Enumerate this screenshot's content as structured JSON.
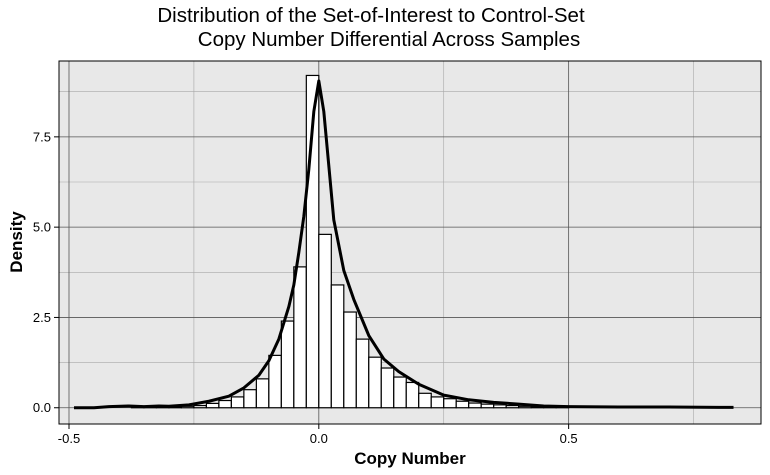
{
  "chart_data": {
    "type": "histogram",
    "title_lines": [
      "Distribution of the Set-of-Interest to Control-Set",
      "Copy Number Differential Across Samples"
    ],
    "xlabel": "Copy Number",
    "ylabel": "Density",
    "xlim": [
      -0.52,
      0.885
    ],
    "ylim": [
      -0.45,
      9.6
    ],
    "x_major_ticks": [
      -0.5,
      0.0,
      0.5
    ],
    "x_tick_labels": [
      "-0.5",
      "0.0",
      "0.5"
    ],
    "x_minor_ticks": [
      -0.25,
      0.25,
      0.75
    ],
    "y_major_ticks": [
      0,
      2.5,
      5,
      7.5
    ],
    "y_tick_labels": [
      "0.0",
      "2.5",
      "5.0",
      "7.5"
    ],
    "y_minor_ticks": [
      1.25,
      3.75,
      6.25,
      8.75
    ],
    "grid": true,
    "panel_background": "#e8e8e8",
    "bar_fill": "#ffffff",
    "line_color": "#000000",
    "bin_width": 0.025,
    "bins": [
      {
        "x0": -0.5,
        "value": 0.0
      },
      {
        "x0": -0.475,
        "value": 0.0
      },
      {
        "x0": -0.45,
        "value": 0.0
      },
      {
        "x0": -0.425,
        "value": 0.0
      },
      {
        "x0": -0.4,
        "value": 0.0
      },
      {
        "x0": -0.375,
        "value": 0.02
      },
      {
        "x0": -0.35,
        "value": 0.02
      },
      {
        "x0": -0.325,
        "value": 0.02
      },
      {
        "x0": -0.3,
        "value": 0.03
      },
      {
        "x0": -0.275,
        "value": 0.04
      },
      {
        "x0": -0.25,
        "value": 0.06
      },
      {
        "x0": -0.225,
        "value": 0.12
      },
      {
        "x0": -0.2,
        "value": 0.2
      },
      {
        "x0": -0.175,
        "value": 0.3
      },
      {
        "x0": -0.15,
        "value": 0.5
      },
      {
        "x0": -0.125,
        "value": 0.8
      },
      {
        "x0": -0.1,
        "value": 1.45
      },
      {
        "x0": -0.075,
        "value": 2.4
      },
      {
        "x0": -0.05,
        "value": 3.9
      },
      {
        "x0": -0.025,
        "value": 9.2
      },
      {
        "x0": 0.0,
        "value": 4.8
      },
      {
        "x0": 0.025,
        "value": 3.4
      },
      {
        "x0": 0.05,
        "value": 2.65
      },
      {
        "x0": 0.075,
        "value": 1.9
      },
      {
        "x0": 0.1,
        "value": 1.4
      },
      {
        "x0": 0.125,
        "value": 1.1
      },
      {
        "x0": 0.15,
        "value": 0.85
      },
      {
        "x0": 0.175,
        "value": 0.7
      },
      {
        "x0": 0.2,
        "value": 0.4
      },
      {
        "x0": 0.225,
        "value": 0.3
      },
      {
        "x0": 0.25,
        "value": 0.25
      },
      {
        "x0": 0.275,
        "value": 0.18
      },
      {
        "x0": 0.3,
        "value": 0.13
      },
      {
        "x0": 0.325,
        "value": 0.1
      },
      {
        "x0": 0.35,
        "value": 0.08
      },
      {
        "x0": 0.375,
        "value": 0.06
      },
      {
        "x0": 0.4,
        "value": 0.04
      },
      {
        "x0": 0.425,
        "value": 0.03
      },
      {
        "x0": 0.45,
        "value": 0.02
      },
      {
        "x0": 0.475,
        "value": 0.02
      }
    ],
    "density_curve": {
      "x": [
        -0.49,
        -0.45,
        -0.42,
        -0.38,
        -0.35,
        -0.32,
        -0.3,
        -0.26,
        -0.22,
        -0.18,
        -0.15,
        -0.12,
        -0.1,
        -0.08,
        -0.06,
        -0.05,
        -0.04,
        -0.03,
        -0.02,
        -0.01,
        0.0,
        0.01,
        0.02,
        0.03,
        0.05,
        0.07,
        0.1,
        0.13,
        0.16,
        0.2,
        0.25,
        0.3,
        0.35,
        0.4,
        0.45,
        0.5,
        0.6,
        0.7,
        0.8,
        0.83
      ],
      "y": [
        0.0,
        0.0,
        0.03,
        0.05,
        0.03,
        0.05,
        0.04,
        0.08,
        0.18,
        0.32,
        0.55,
        0.9,
        1.3,
        1.9,
        2.8,
        3.4,
        4.3,
        5.3,
        6.6,
        8.2,
        9.05,
        8.2,
        6.7,
        5.2,
        3.8,
        3.0,
        2.0,
        1.35,
        1.0,
        0.65,
        0.35,
        0.22,
        0.15,
        0.1,
        0.05,
        0.03,
        0.02,
        0.02,
        0.01,
        0.01
      ]
    }
  }
}
